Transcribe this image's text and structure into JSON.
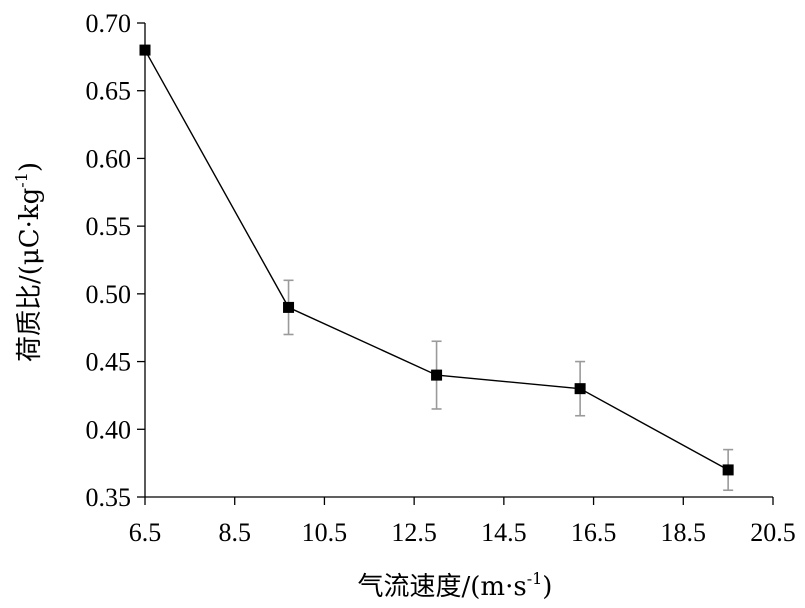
{
  "chart_data": {
    "type": "line",
    "xlabel": {
      "main": "气流速度/(m·s",
      "sup": "-1",
      "tail": ")"
    },
    "ylabel": {
      "main": "荷质比/(μC·kg",
      "sup": "-1",
      "tail": ")"
    },
    "xlim": [
      6.5,
      20.5
    ],
    "ylim": [
      0.35,
      0.7
    ],
    "x_ticks": [
      6.5,
      8.5,
      10.5,
      12.5,
      14.5,
      16.5,
      18.5,
      20.5
    ],
    "x_tick_labels": [
      "6.5",
      "8.5",
      "10.5",
      "12.5",
      "14.5",
      "16.5",
      "18.5",
      "20.5"
    ],
    "y_ticks": [
      0.35,
      0.4,
      0.45,
      0.5,
      0.55,
      0.6,
      0.65,
      0.7
    ],
    "y_tick_labels": [
      "0.35",
      "0.40",
      "0.45",
      "0.50",
      "0.55",
      "0.60",
      "0.65",
      "0.70"
    ],
    "grid": false,
    "legend": "none",
    "series": [
      {
        "color": "#000000",
        "marker": "square",
        "x": [
          6.5,
          9.7,
          13.0,
          16.2,
          19.5
        ],
        "y": [
          0.68,
          0.49,
          0.44,
          0.43,
          0.37
        ],
        "err_low": [
          0.68,
          0.47,
          0.415,
          0.41,
          0.355
        ],
        "err_high": [
          0.68,
          0.51,
          0.465,
          0.45,
          0.385
        ]
      }
    ]
  }
}
